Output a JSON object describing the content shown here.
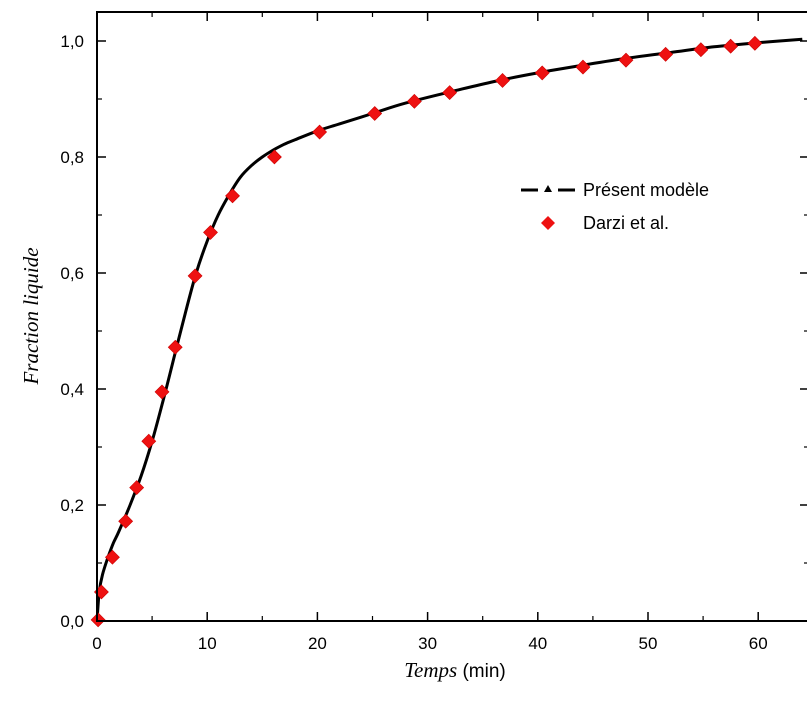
{
  "chart_data": {
    "type": "line",
    "xlabel": {
      "main": "Temps",
      "unit": " (min)"
    },
    "ylabel": "Fraction liquide",
    "xlim": [
      0,
      64
    ],
    "ylim": [
      0,
      1.05
    ],
    "xticks": [
      0,
      10,
      20,
      30,
      40,
      50,
      60
    ],
    "yticks": [
      0.0,
      0.2,
      0.4,
      0.6,
      0.8,
      1.0
    ],
    "x_tick_labels": [
      "0",
      "10",
      "20",
      "30",
      "40",
      "50",
      "60"
    ],
    "y_tick_labels": [
      "0,0",
      "0,2",
      "0,4",
      "0,6",
      "0,8",
      "1,0"
    ],
    "legend_position": "upper-right-middle",
    "series": [
      {
        "name": "Présent modèle",
        "style": "solid-line",
        "color": "#000000",
        "x": [
          0,
          0.2,
          0.5,
          1,
          1.5,
          2,
          3,
          4,
          5,
          6,
          7,
          8,
          9,
          10,
          11,
          12,
          13,
          14,
          15,
          16,
          17,
          18,
          20,
          22,
          25,
          28,
          32,
          36,
          40,
          44,
          48,
          52,
          56,
          60,
          64
        ],
        "y": [
          0.0,
          0.05,
          0.08,
          0.11,
          0.135,
          0.155,
          0.2,
          0.25,
          0.31,
          0.38,
          0.455,
          0.53,
          0.6,
          0.655,
          0.7,
          0.735,
          0.765,
          0.785,
          0.8,
          0.812,
          0.822,
          0.83,
          0.845,
          0.857,
          0.875,
          0.893,
          0.912,
          0.93,
          0.945,
          0.958,
          0.97,
          0.98,
          0.99,
          0.997,
          1.003
        ]
      },
      {
        "name": "Darzi et al.",
        "style": "markers",
        "marker": "diamond",
        "color": "#ee1111",
        "x": [
          0.1,
          0.4,
          1.4,
          2.6,
          3.6,
          4.7,
          5.9,
          7.1,
          8.9,
          10.3,
          12.3,
          16.1,
          20.2,
          25.2,
          28.8,
          32.0,
          36.8,
          40.4,
          44.1,
          48.0,
          51.6,
          54.8,
          57.5,
          59.7
        ],
        "y": [
          0.002,
          0.05,
          0.11,
          0.172,
          0.23,
          0.31,
          0.395,
          0.472,
          0.595,
          0.67,
          0.733,
          0.8,
          0.843,
          0.875,
          0.896,
          0.911,
          0.932,
          0.945,
          0.955,
          0.967,
          0.977,
          0.985,
          0.991,
          0.996
        ]
      }
    ]
  }
}
